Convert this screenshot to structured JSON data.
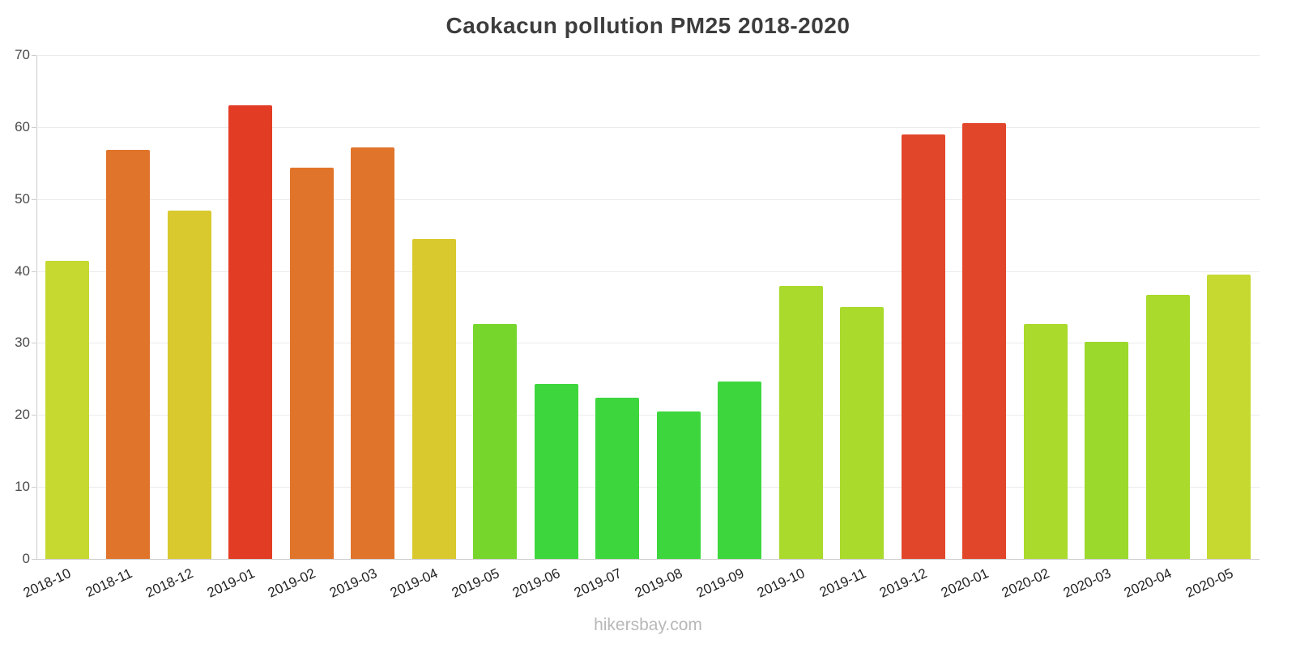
{
  "chart_data": {
    "type": "bar",
    "title": "Caokacun pollution PM25 2018-2020",
    "categories": [
      "2018-10",
      "2018-11",
      "2018-12",
      "2019-01",
      "2019-02",
      "2019-03",
      "2019-04",
      "2019-05",
      "2019-06",
      "2019-07",
      "2019-08",
      "2019-09",
      "2019-10",
      "2019-11",
      "2019-12",
      "2020-01",
      "2020-02",
      "2020-03",
      "2020-04",
      "2020-05"
    ],
    "values": [
      41.4,
      56.8,
      48.4,
      63.0,
      54.4,
      57.2,
      44.5,
      32.6,
      24.3,
      22.4,
      20.5,
      24.7,
      37.9,
      35.0,
      59.0,
      60.5,
      32.6,
      30.2,
      36.7,
      39.5
    ],
    "bar_colors": [
      "#c5d930",
      "#e0742b",
      "#d9c92e",
      "#e33c24",
      "#e0742b",
      "#e0742b",
      "#d9c92e",
      "#77d62c",
      "#3dd73d",
      "#3dd73d",
      "#3dd73d",
      "#3dd73d",
      "#a9da2c",
      "#a9da2c",
      "#e2462a",
      "#e2462a",
      "#a9da2c",
      "#9bd92c",
      "#a9da2c",
      "#c5d930"
    ],
    "xlabel": "",
    "ylabel": "",
    "ylim": [
      0,
      70
    ],
    "yticks": [
      0,
      10,
      20,
      30,
      40,
      50,
      60,
      70
    ],
    "grid": true,
    "legend": false
  },
  "footer": {
    "watermark": "hikersbay.com"
  },
  "colors": {
    "grid": "#ebebeb",
    "axis": "#cccccc",
    "tick_label": "#4a4a4a",
    "x_label": "#222222",
    "title": "#3d3d3d",
    "watermark": "#b8b8b8"
  }
}
